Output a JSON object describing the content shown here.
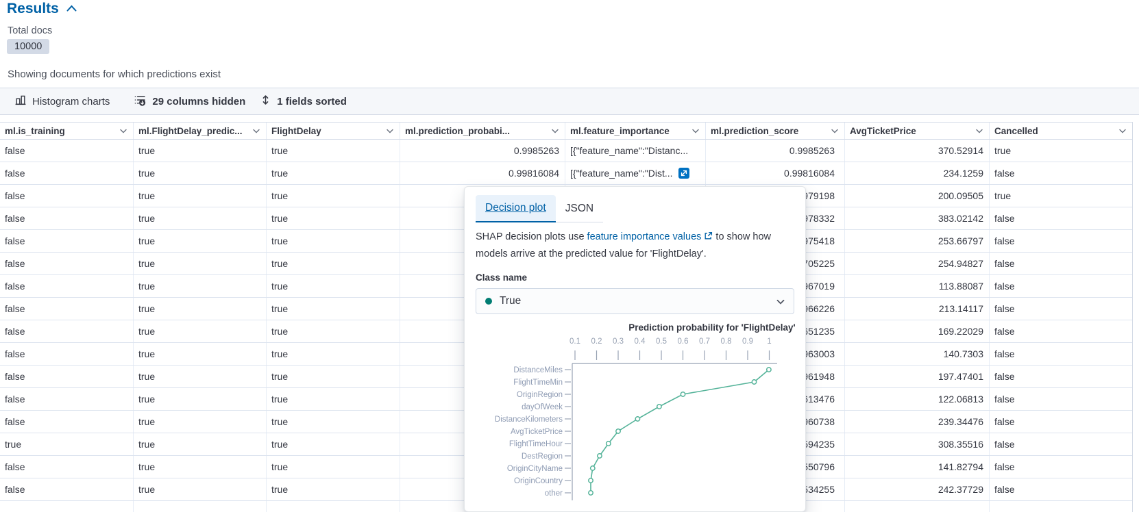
{
  "accordion": {
    "title": "Results"
  },
  "summary": {
    "total_docs_label": "Total docs",
    "total_docs_value": "10000",
    "subtitle": "Showing documents for which predictions exist"
  },
  "toolbar": {
    "histogram_label": "Histogram charts",
    "columns_hidden_label": "29 columns hidden",
    "fields_sorted_label": "1 fields sorted"
  },
  "table": {
    "columns": [
      {
        "label": "ml.is_training",
        "align": "left"
      },
      {
        "label": "ml.FlightDelay_predic...",
        "align": "left"
      },
      {
        "label": "FlightDelay",
        "align": "left"
      },
      {
        "label": "ml.prediction_probabi...",
        "align": "right"
      },
      {
        "label": "ml.feature_importance",
        "align": "left"
      },
      {
        "label": "ml.prediction_score",
        "align": "right"
      },
      {
        "label": "AvgTicketPrice",
        "align": "right"
      },
      {
        "label": "Cancelled",
        "align": "left"
      }
    ],
    "rows": [
      [
        "false",
        "true",
        "true",
        "0.9985263",
        "[{\"feature_name\":\"Distanc...",
        "0.9985263",
        "370.52914",
        "true"
      ],
      [
        "false",
        "true",
        "true",
        "0.99816084",
        "[{\"feature_name\":\"Dist...",
        "0.99816084",
        "234.1259",
        "false"
      ],
      [
        "false",
        "true",
        "true",
        "",
        "",
        "979198",
        "200.09505",
        "true"
      ],
      [
        "false",
        "true",
        "true",
        "",
        "",
        "978332",
        "383.02142",
        "false"
      ],
      [
        "false",
        "true",
        "true",
        "",
        "",
        "975418",
        "253.66797",
        "false"
      ],
      [
        "false",
        "true",
        "true",
        "",
        "",
        "705225",
        "254.94827",
        "false"
      ],
      [
        "false",
        "true",
        "true",
        "",
        "",
        "967019",
        "113.88087",
        "false"
      ],
      [
        "false",
        "true",
        "true",
        "",
        "",
        "966226",
        "213.14117",
        "false"
      ],
      [
        "false",
        "true",
        "true",
        "",
        "",
        "651235",
        "169.22029",
        "false"
      ],
      [
        "false",
        "true",
        "true",
        "",
        "",
        "963003",
        "140.7303",
        "false"
      ],
      [
        "false",
        "true",
        "true",
        "",
        "",
        "961948",
        "197.47401",
        "false"
      ],
      [
        "false",
        "true",
        "true",
        "",
        "",
        "613476",
        "122.06813",
        "false"
      ],
      [
        "false",
        "true",
        "true",
        "",
        "",
        "960738",
        "239.34476",
        "false"
      ],
      [
        "true",
        "true",
        "true",
        "",
        "",
        "594235",
        "308.35516",
        "false"
      ],
      [
        "false",
        "true",
        "true",
        "",
        "",
        "550796",
        "141.82794",
        "false"
      ],
      [
        "false",
        "true",
        "true",
        "",
        "",
        "534255",
        "242.37729",
        "false"
      ],
      [
        "",
        "",
        "",
        "",
        "",
        "",
        "",
        ""
      ]
    ],
    "expand_cell": {
      "row": 1,
      "col": 4
    }
  },
  "popover": {
    "tabs": [
      {
        "label": "Decision plot",
        "active": true
      },
      {
        "label": "JSON",
        "active": false
      }
    ],
    "description_prefix": "SHAP decision plots use ",
    "description_link": "feature importance values",
    "description_suffix": " to show how models arrive at the predicted value for 'FlightDelay'.",
    "class_name_label": "Class name",
    "class_selected": "True",
    "class_dot_color": "#017d73"
  },
  "chart_data": {
    "type": "line",
    "title": "Prediction probability for 'FlightDelay'",
    "orientation": "horizontal_categories",
    "x_ticks": [
      "0.1",
      "0.2",
      "0.3",
      "0.4",
      "0.5",
      "0.6",
      "0.7",
      "0.8",
      "0.9",
      "1"
    ],
    "xlim": [
      0.08,
      1.02
    ],
    "categories": [
      "DistanceMiles",
      "FlightTimeMin",
      "OriginRegion",
      "dayOfWeek",
      "DistanceKilometers",
      "AvgTicketPrice",
      "FlightTimeHour",
      "DestRegion",
      "OriginCityName",
      "OriginCountry",
      "other"
    ],
    "values": [
      0.998,
      0.93,
      0.6,
      0.49,
      0.39,
      0.3,
      0.255,
      0.214,
      0.182,
      0.173,
      0.173
    ],
    "line_color": "#54b399",
    "axis_color": "#98a2b3",
    "label_color": "#8f9cb4",
    "grid": false,
    "legend": false
  },
  "colors": {
    "primary": "#0061a6",
    "expand_icon_blue": "#0071c2",
    "teal_dot": "#017d73"
  }
}
